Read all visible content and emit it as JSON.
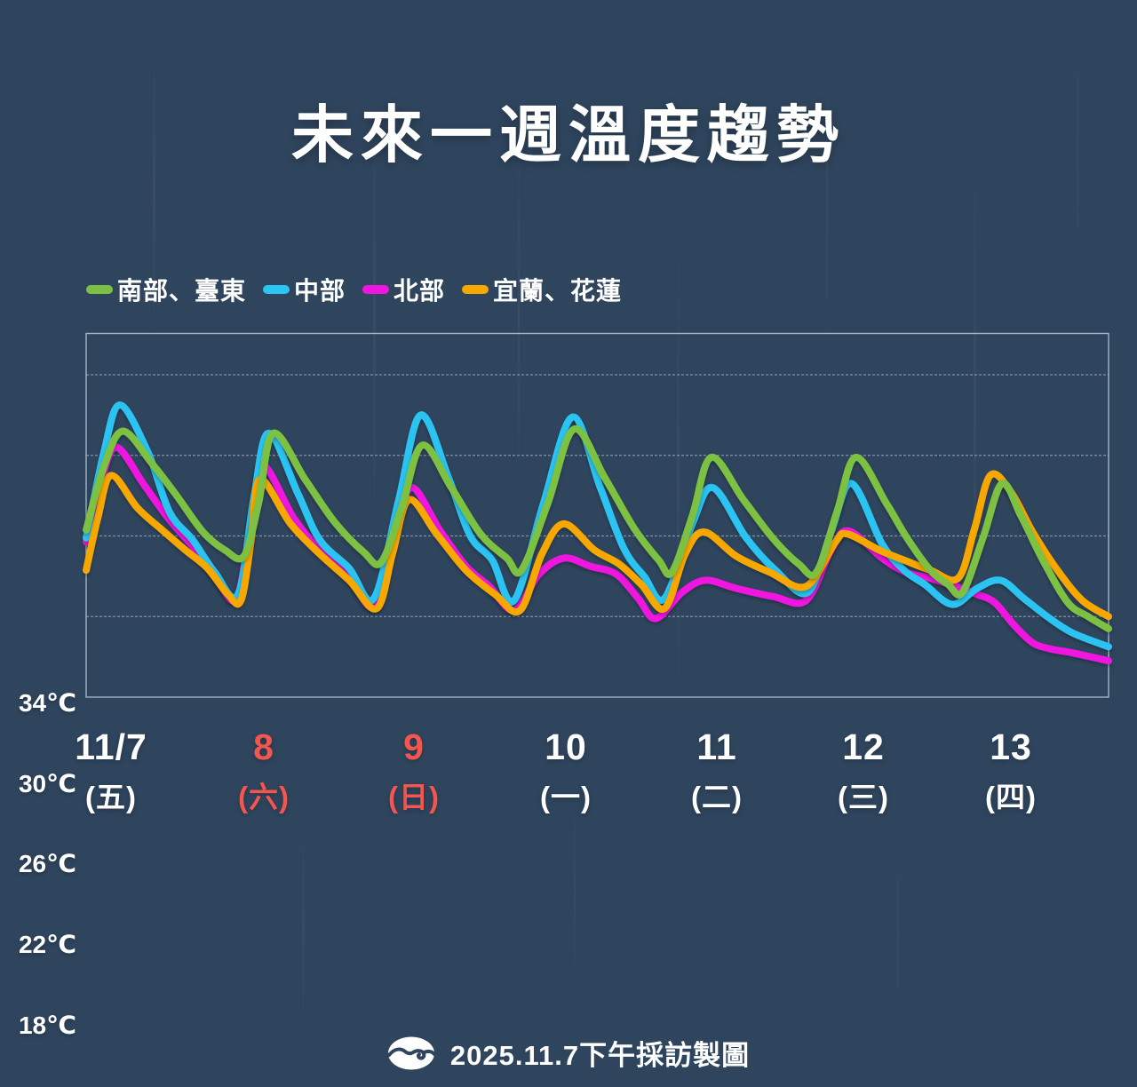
{
  "colors": {
    "background": "#2f455e",
    "grid": "#c6d0de",
    "plot_border": "#c6d0de",
    "date_highlight": "#f2564f",
    "text": "#ffffff"
  },
  "footer": {
    "credit": "2025.11.7下午採訪製圖",
    "logo": "cwa-logo"
  },
  "chart_data": {
    "type": "line",
    "title": "未來一週溫度趨勢",
    "grid": true,
    "legend_position": "top-left",
    "y_axis": {
      "range": [
        18,
        36
      ],
      "ticks": [
        {
          "label": "34℃",
          "value": 34
        },
        {
          "label": "30℃",
          "value": 30
        },
        {
          "label": "26℃",
          "value": 26
        },
        {
          "label": "22℃",
          "value": 22
        },
        {
          "label": "18℃",
          "value": 18
        }
      ]
    },
    "x_axis": {
      "unit": "day",
      "categories": [
        {
          "date": "11/7",
          "weekday": "(五)",
          "highlight": false
        },
        {
          "date": "8",
          "weekday": "(六)",
          "highlight": true
        },
        {
          "date": "9",
          "weekday": "(日)",
          "highlight": true
        },
        {
          "date": "10",
          "weekday": "(一)",
          "highlight": false
        },
        {
          "date": "11",
          "weekday": "(二)",
          "highlight": false
        },
        {
          "date": "12",
          "weekday": "(三)",
          "highlight": false
        },
        {
          "date": "13",
          "weekday": "(四)",
          "highlight": false
        }
      ]
    },
    "series": [
      {
        "name": "南部、臺東",
        "color": "#7cc143",
        "z": 4,
        "points": [
          [
            0,
            26.3
          ],
          [
            0.12,
            29.4
          ],
          [
            0.25,
            31.2
          ],
          [
            0.45,
            29.6
          ],
          [
            0.62,
            28.0
          ],
          [
            0.8,
            26.2
          ],
          [
            0.95,
            25.3
          ],
          [
            1.08,
            25.0
          ],
          [
            1.18,
            27.6
          ],
          [
            1.28,
            31.1
          ],
          [
            1.5,
            28.8
          ],
          [
            1.7,
            26.7
          ],
          [
            1.9,
            25.2
          ],
          [
            2.02,
            24.7
          ],
          [
            2.16,
            27.4
          ],
          [
            2.3,
            30.5
          ],
          [
            2.5,
            28.4
          ],
          [
            2.7,
            26.1
          ],
          [
            2.88,
            24.9
          ],
          [
            2.98,
            24.3
          ],
          [
            3.16,
            27.6
          ],
          [
            3.34,
            31.3
          ],
          [
            3.55,
            28.9
          ],
          [
            3.75,
            26.4
          ],
          [
            3.92,
            24.8
          ],
          [
            4.01,
            24.2
          ],
          [
            4.15,
            27.0
          ],
          [
            4.28,
            29.9
          ],
          [
            4.5,
            27.8
          ],
          [
            4.7,
            25.9
          ],
          [
            4.88,
            24.6
          ],
          [
            5.0,
            24.2
          ],
          [
            5.14,
            27.2
          ],
          [
            5.27,
            29.9
          ],
          [
            5.48,
            27.6
          ],
          [
            5.62,
            25.9
          ],
          [
            5.78,
            24.3
          ],
          [
            5.9,
            23.6
          ],
          [
            6.0,
            23.2
          ],
          [
            6.14,
            25.9
          ],
          [
            6.27,
            28.6
          ],
          [
            6.4,
            27.0
          ],
          [
            6.55,
            24.8
          ],
          [
            6.72,
            22.7
          ],
          [
            6.86,
            22.0
          ],
          [
            7,
            21.4
          ]
        ]
      },
      {
        "name": "中部",
        "color": "#2bc3f2",
        "z": 2,
        "points": [
          [
            0,
            25.9
          ],
          [
            0.12,
            30.1
          ],
          [
            0.23,
            32.5
          ],
          [
            0.42,
            30.2
          ],
          [
            0.57,
            27.2
          ],
          [
            0.73,
            25.8
          ],
          [
            0.88,
            24.2
          ],
          [
            1.04,
            23.1
          ],
          [
            1.15,
            28.0
          ],
          [
            1.25,
            31.1
          ],
          [
            1.45,
            28.1
          ],
          [
            1.6,
            25.8
          ],
          [
            1.8,
            24.4
          ],
          [
            1.97,
            22.9
          ],
          [
            2.14,
            27.8
          ],
          [
            2.29,
            32.0
          ],
          [
            2.48,
            28.9
          ],
          [
            2.63,
            26.0
          ],
          [
            2.78,
            24.8
          ],
          [
            2.93,
            22.8
          ],
          [
            3.13,
            27.6
          ],
          [
            3.33,
            31.9
          ],
          [
            3.52,
            28.4
          ],
          [
            3.68,
            25.4
          ],
          [
            3.82,
            24.0
          ],
          [
            3.96,
            22.9
          ],
          [
            4.15,
            26.6
          ],
          [
            4.29,
            28.4
          ],
          [
            4.52,
            25.9
          ],
          [
            4.72,
            24.3
          ],
          [
            4.94,
            23.2
          ],
          [
            5.1,
            26.2
          ],
          [
            5.24,
            28.6
          ],
          [
            5.45,
            25.6
          ],
          [
            5.6,
            24.3
          ],
          [
            5.74,
            23.6
          ],
          [
            5.93,
            22.6
          ],
          [
            6.1,
            23.4
          ],
          [
            6.26,
            23.8
          ],
          [
            6.42,
            22.9
          ],
          [
            6.58,
            22.0
          ],
          [
            6.75,
            21.2
          ],
          [
            7,
            20.5
          ]
        ]
      },
      {
        "name": "北部",
        "color": "#ef16e0",
        "z": 1,
        "points": [
          [
            0,
            25.7
          ],
          [
            0.11,
            28.9
          ],
          [
            0.21,
            30.4
          ],
          [
            0.4,
            28.5
          ],
          [
            0.57,
            26.8
          ],
          [
            0.75,
            25.3
          ],
          [
            0.9,
            23.8
          ],
          [
            1.03,
            22.9
          ],
          [
            1.13,
            26.8
          ],
          [
            1.21,
            29.5
          ],
          [
            1.42,
            26.9
          ],
          [
            1.6,
            25.3
          ],
          [
            1.8,
            23.9
          ],
          [
            1.98,
            22.5
          ],
          [
            2.12,
            26.2
          ],
          [
            2.23,
            28.4
          ],
          [
            2.42,
            26.3
          ],
          [
            2.6,
            24.5
          ],
          [
            2.76,
            23.5
          ],
          [
            2.93,
            22.3
          ],
          [
            3.1,
            24.1
          ],
          [
            3.27,
            24.9
          ],
          [
            3.45,
            24.5
          ],
          [
            3.63,
            24.1
          ],
          [
            3.78,
            22.9
          ],
          [
            3.9,
            21.9
          ],
          [
            4.08,
            23.2
          ],
          [
            4.24,
            23.8
          ],
          [
            4.45,
            23.4
          ],
          [
            4.7,
            23.0
          ],
          [
            4.93,
            22.8
          ],
          [
            5.1,
            25.3
          ],
          [
            5.22,
            26.25
          ],
          [
            5.45,
            24.9
          ],
          [
            5.61,
            24.2
          ],
          [
            5.78,
            23.9
          ],
          [
            5.95,
            23.5
          ],
          [
            6.1,
            23.1
          ],
          [
            6.22,
            22.7
          ],
          [
            6.35,
            21.6
          ],
          [
            6.48,
            20.7
          ],
          [
            6.6,
            20.4
          ],
          [
            6.75,
            20.2
          ],
          [
            7,
            19.8
          ]
        ]
      },
      {
        "name": "宜蘭、花蓮",
        "color": "#f6a800",
        "z": 3,
        "points": [
          [
            0,
            24.3
          ],
          [
            0.08,
            26.9
          ],
          [
            0.17,
            29.0
          ],
          [
            0.35,
            27.4
          ],
          [
            0.52,
            26.3
          ],
          [
            0.68,
            25.3
          ],
          [
            0.83,
            24.4
          ],
          [
            0.97,
            23.1
          ],
          [
            1.06,
            22.8
          ],
          [
            1.13,
            25.8
          ],
          [
            1.19,
            28.8
          ],
          [
            1.4,
            26.6
          ],
          [
            1.6,
            25.1
          ],
          [
            1.8,
            23.8
          ],
          [
            1.99,
            22.4
          ],
          [
            2.1,
            25.2
          ],
          [
            2.21,
            27.8
          ],
          [
            2.4,
            26.1
          ],
          [
            2.6,
            24.3
          ],
          [
            2.8,
            23.1
          ],
          [
            2.97,
            22.3
          ],
          [
            3.12,
            25.1
          ],
          [
            3.27,
            26.6
          ],
          [
            3.48,
            25.3
          ],
          [
            3.65,
            24.6
          ],
          [
            3.8,
            23.6
          ],
          [
            3.96,
            22.4
          ],
          [
            4.1,
            25.1
          ],
          [
            4.23,
            26.2
          ],
          [
            4.45,
            25.0
          ],
          [
            4.68,
            24.2
          ],
          [
            4.93,
            23.5
          ],
          [
            5.13,
            25.7
          ],
          [
            5.21,
            26.1
          ],
          [
            5.43,
            25.3
          ],
          [
            5.6,
            24.8
          ],
          [
            5.78,
            24.3
          ],
          [
            5.97,
            23.9
          ],
          [
            6.08,
            26.3
          ],
          [
            6.19,
            29.0
          ],
          [
            6.33,
            28.2
          ],
          [
            6.48,
            26.2
          ],
          [
            6.65,
            24.3
          ],
          [
            6.82,
            22.8
          ],
          [
            7,
            22.0
          ]
        ]
      }
    ]
  }
}
